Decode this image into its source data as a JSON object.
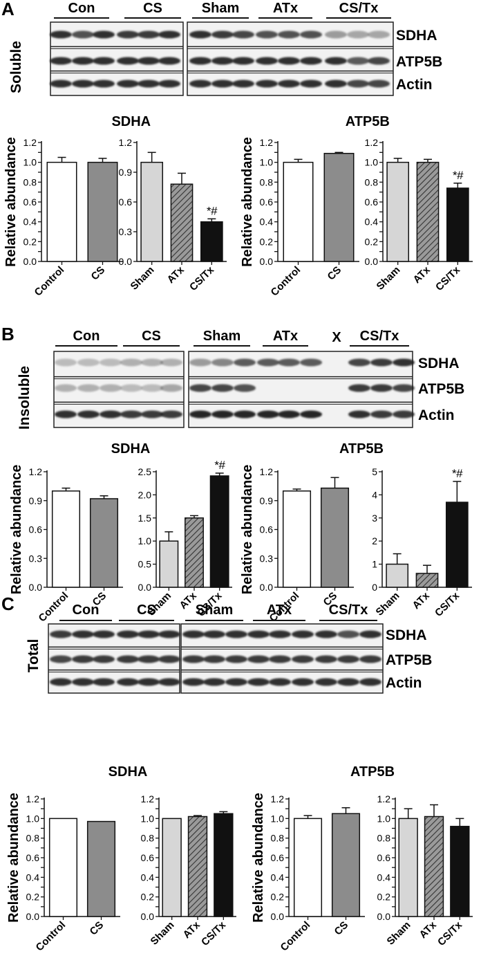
{
  "panels": [
    {
      "letter": "A",
      "fraction_label": "Soluble",
      "blot": {
        "groups": [
          "Con",
          "CS",
          "Sham",
          "ATx",
          "CS/Tx"
        ],
        "extra_mark": "",
        "rows": [
          "SDHA",
          "ATP5B",
          "Actin"
        ]
      },
      "charts": [
        {
          "title": "SDHA",
          "ylabel": "Relative abundance",
          "chart_data": {
            "type": "bar",
            "categories": [
              "Control",
              "CS"
            ],
            "values": [
              1.0,
              1.0
            ],
            "errors": [
              0.05,
              0.04
            ],
            "ylim": [
              0,
              1.2
            ],
            "yticks": [
              "0.0",
              "0.1",
              "0.2",
              "0.3",
              "0.4",
              "0.5",
              "0.6",
              "0.7",
              "0.8",
              "0.9",
              "1.0",
              "1.1",
              "1.2"
            ],
            "annotations": [
              "",
              ""
            ]
          }
        },
        {
          "title": "",
          "chart_data": {
            "type": "bar",
            "categories": [
              "Sham",
              "ATx",
              "CS/Tx"
            ],
            "values": [
              1.0,
              0.78,
              0.4
            ],
            "errors": [
              0.1,
              0.11,
              0.03
            ],
            "ylim": [
              0,
              1.2
            ],
            "yticks": [
              "0.0",
              "0.3",
              "0.6",
              "0.9",
              "1.2"
            ],
            "annotations": [
              "",
              "",
              "*#"
            ]
          }
        },
        {
          "title": "ATP5B",
          "ylabel": "Relative abundance",
          "chart_data": {
            "type": "bar",
            "categories": [
              "Control",
              "CS"
            ],
            "values": [
              1.0,
              1.09
            ],
            "errors": [
              0.03,
              0.01
            ],
            "ylim": [
              0,
              1.2
            ],
            "yticks": [
              "0.0",
              "0.1",
              "0.2",
              "0.3",
              "0.4",
              "0.5",
              "0.6",
              "0.7",
              "0.8",
              "0.9",
              "1.0",
              "1.1",
              "1.2"
            ],
            "annotations": [
              "",
              ""
            ]
          }
        },
        {
          "title": "",
          "chart_data": {
            "type": "bar",
            "categories": [
              "Sham",
              "ATx",
              "CS/Tx"
            ],
            "values": [
              1.0,
              1.0,
              0.74
            ],
            "errors": [
              0.04,
              0.03,
              0.05
            ],
            "ylim": [
              0,
              1.2
            ],
            "yticks": [
              "0.0",
              "0.1",
              "0.2",
              "0.3",
              "0.4",
              "0.5",
              "0.6",
              "0.7",
              "0.8",
              "0.9",
              "1.0",
              "1.1",
              "1.2"
            ],
            "annotations": [
              "",
              "",
              "*#"
            ]
          }
        }
      ]
    },
    {
      "letter": "B",
      "fraction_label": "Insoluble",
      "blot": {
        "groups": [
          "Con",
          "CS",
          "Sham",
          "ATx",
          "CS/Tx"
        ],
        "extra_mark": "X",
        "rows": [
          "SDHA",
          "ATP5B",
          "Actin"
        ]
      },
      "charts": [
        {
          "title": "SDHA",
          "ylabel": "Relative abundance",
          "chart_data": {
            "type": "bar",
            "categories": [
              "Control",
              "CS"
            ],
            "values": [
              1.0,
              0.92
            ],
            "errors": [
              0.03,
              0.03
            ],
            "ylim": [
              0,
              1.2
            ],
            "yticks": [
              "0.0",
              "0.3",
              "0.6",
              "0.9",
              "1.2"
            ],
            "annotations": [
              "",
              ""
            ]
          }
        },
        {
          "title": "",
          "chart_data": {
            "type": "bar",
            "categories": [
              "Sham",
              "ATx",
              "CS/Tx"
            ],
            "values": [
              1.0,
              1.5,
              2.41
            ],
            "errors": [
              0.2,
              0.05,
              0.06
            ],
            "ylim": [
              0,
              2.5
            ],
            "yticks": [
              "0.0",
              "0.5",
              "1.0",
              "1.5",
              "2.0",
              "2.5"
            ],
            "annotations": [
              "",
              "",
              "*#"
            ]
          }
        },
        {
          "title": "ATP5B",
          "ylabel": "Relative abundance",
          "chart_data": {
            "type": "bar",
            "categories": [
              "Control",
              "CS"
            ],
            "values": [
              1.0,
              1.03
            ],
            "errors": [
              0.02,
              0.11
            ],
            "ylim": [
              0,
              1.2
            ],
            "yticks": [
              "0.0",
              "0.3",
              "0.6",
              "0.9",
              "1.2"
            ],
            "annotations": [
              "",
              ""
            ]
          }
        },
        {
          "title": "",
          "chart_data": {
            "type": "bar",
            "categories": [
              "Sham",
              "ATx",
              "CS/Tx"
            ],
            "values": [
              1.0,
              0.6,
              3.68
            ],
            "errors": [
              0.45,
              0.35,
              0.9
            ],
            "ylim": [
              0,
              5
            ],
            "yticks": [
              "0",
              "1",
              "2",
              "3",
              "4",
              "5"
            ],
            "annotations": [
              "",
              "",
              "*#"
            ]
          }
        }
      ]
    },
    {
      "letter": "C",
      "fraction_label": "Total",
      "blot": {
        "groups": [
          "Con",
          "CS",
          "Sham",
          "ATx",
          "CS/Tx"
        ],
        "extra_mark": "",
        "rows": [
          "SDHA",
          "ATP5B",
          "Actin"
        ]
      },
      "charts": [
        {
          "title": "SDHA",
          "ylabel": "Relative abundance",
          "chart_data": {
            "type": "bar",
            "categories": [
              "Control",
              "CS"
            ],
            "values": [
              1.0,
              0.97
            ],
            "errors": [
              0,
              0
            ],
            "ylim": [
              0,
              1.2
            ],
            "yticks": [
              "0.0",
              "0.1",
              "0.2",
              "0.3",
              "0.4",
              "0.5",
              "0.6",
              "0.7",
              "0.8",
              "0.9",
              "1.0",
              "1.1",
              "1.2"
            ],
            "annotations": [
              "",
              ""
            ]
          }
        },
        {
          "title": "",
          "chart_data": {
            "type": "bar",
            "categories": [
              "Sham",
              "ATx",
              "CS/Tx"
            ],
            "values": [
              1.0,
              1.02,
              1.05
            ],
            "errors": [
              0,
              0.01,
              0.02
            ],
            "ylim": [
              0,
              1.2
            ],
            "yticks": [
              "0.0",
              "0.1",
              "0.2",
              "0.3",
              "0.4",
              "0.5",
              "0.6",
              "0.7",
              "0.8",
              "0.9",
              "1.0",
              "1.1",
              "1.2"
            ],
            "annotations": [
              "",
              "",
              ""
            ]
          }
        },
        {
          "title": "ATP5B",
          "ylabel": "Relative abundance",
          "chart_data": {
            "type": "bar",
            "categories": [
              "Control",
              "CS"
            ],
            "values": [
              1.0,
              1.05
            ],
            "errors": [
              0.03,
              0.06
            ],
            "ylim": [
              0,
              1.2
            ],
            "yticks": [
              "0.0",
              "0.1",
              "0.2",
              "0.3",
              "0.4",
              "0.5",
              "0.6",
              "0.7",
              "0.8",
              "0.9",
              "1.0",
              "1.1",
              "1.2"
            ],
            "annotations": [
              "",
              ""
            ]
          }
        },
        {
          "title": "",
          "chart_data": {
            "type": "bar",
            "categories": [
              "Sham",
              "ATx",
              "CS/Tx"
            ],
            "values": [
              1.0,
              1.02,
              0.92
            ],
            "errors": [
              0.1,
              0.12,
              0.08
            ],
            "ylim": [
              0,
              1.2
            ],
            "yticks": [
              "0.0",
              "0.1",
              "0.2",
              "0.3",
              "0.4",
              "0.5",
              "0.6",
              "0.7",
              "0.8",
              "0.9",
              "1.0",
              "1.1",
              "1.2"
            ],
            "annotations": [
              "",
              "",
              ""
            ]
          }
        }
      ]
    }
  ],
  "colors": {
    "Control": "#ffffff",
    "CS": "#8c8c8c",
    "Sham": "#d6d6d6",
    "ATx": "hatched-gray",
    "CS/Tx": "#111111",
    "band": "#1a1a1a",
    "blot_bg": "#f2f2f2"
  }
}
